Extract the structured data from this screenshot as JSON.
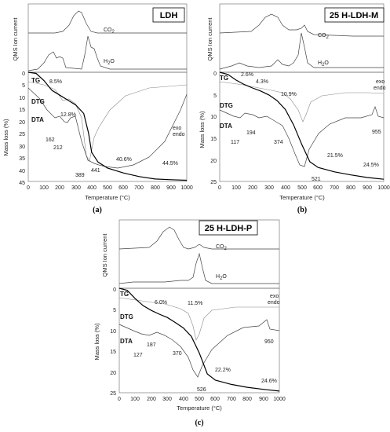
{
  "figure": {
    "panels": [
      {
        "letter": "(a)",
        "title": "LDH",
        "qms_ylabel": "QMS Ion current",
        "mass_ylabel": "Mass loss (%)",
        "xlabel": "Temperature (°C)",
        "xticks": [
          "0",
          "100",
          "200",
          "300",
          "400",
          "500",
          "600",
          "700",
          "800",
          "900",
          "1000"
        ],
        "yticks": [
          "0",
          "5",
          "10",
          "15",
          "20",
          "25",
          "30",
          "35",
          "40",
          "45"
        ],
        "co2_label": "CO",
        "h2o_label": "H",
        "curve_labels": {
          "tg": "TG",
          "dtg": "DTG",
          "dta": "DTA"
        },
        "exo": "exo",
        "endo": "endo",
        "annotations": [
          {
            "text": "8.5%",
            "id": "p1"
          },
          {
            "text": "12.8%",
            "id": "p2"
          },
          {
            "text": "40.6%",
            "id": "p3"
          },
          {
            "text": "44.5%",
            "id": "p4"
          },
          {
            "text": "162",
            "id": "t1"
          },
          {
            "text": "212",
            "id": "t2"
          },
          {
            "text": "389",
            "id": "t3"
          },
          {
            "text": "441",
            "id": "t4"
          }
        ]
      },
      {
        "letter": "(b)",
        "title": "25 H-LDH-M",
        "qms_ylabel": "QMS Ion current",
        "mass_ylabel": "Mass loss (%)",
        "xlabel": "Temperature (°C)",
        "xticks": [
          "0",
          "100",
          "200",
          "300",
          "400",
          "500",
          "600",
          "700",
          "800",
          "900",
          "1000"
        ],
        "yticks": [
          "0",
          "5",
          "10",
          "15",
          "20",
          "25"
        ],
        "co2_label": "CO",
        "h2o_label": "H",
        "curve_labels": {
          "tg": "TG",
          "dtg": "DTG",
          "dta": "DTA"
        },
        "exo": "exo",
        "endo": "endo",
        "annotations": [
          {
            "text": "2.6%",
            "id": "p1"
          },
          {
            "text": "4.3%",
            "id": "p2"
          },
          {
            "text": "10.9%",
            "id": "p3"
          },
          {
            "text": "21.5%",
            "id": "p4"
          },
          {
            "text": "24.5%",
            "id": "p5"
          },
          {
            "text": "117",
            "id": "t1"
          },
          {
            "text": "194",
            "id": "t2"
          },
          {
            "text": "374",
            "id": "t3"
          },
          {
            "text": "521",
            "id": "t4"
          },
          {
            "text": "955",
            "id": "t5"
          }
        ]
      },
      {
        "letter": "(c)",
        "title": "25 H-LDH-P",
        "qms_ylabel": "QMS Ion current",
        "mass_ylabel": "Mass loss (%)",
        "xlabel": "Temperature (°C)",
        "xticks": [
          "0",
          "100",
          "200",
          "300",
          "400",
          "500",
          "600",
          "700",
          "800",
          "900",
          "1000"
        ],
        "yticks": [
          "0",
          "5",
          "10",
          "15",
          "20",
          "25"
        ],
        "co2_label": "CO",
        "h2o_label": "H",
        "curve_labels": {
          "tg": "TG",
          "dtg": "DTG",
          "dta": "DTA"
        },
        "exo": "exo",
        "endo": "endo",
        "annotations": [
          {
            "text": "6.0%",
            "id": "p1"
          },
          {
            "text": "11.5%",
            "id": "p2"
          },
          {
            "text": "22.2%",
            "id": "p3"
          },
          {
            "text": "24.6%",
            "id": "p4"
          },
          {
            "text": "127",
            "id": "t1"
          },
          {
            "text": "187",
            "id": "t2"
          },
          {
            "text": "370",
            "id": "t3"
          },
          {
            "text": "526",
            "id": "t4"
          },
          {
            "text": "950",
            "id": "t5"
          }
        ]
      }
    ]
  },
  "chart_data": [
    {
      "type": "line",
      "title": "LDH",
      "xlabel": "Temperature (°C)",
      "ylabel": "Mass loss (%)",
      "xlim": [
        0,
        1000
      ],
      "ylim": [
        45,
        0
      ],
      "series": [
        {
          "name": "TG",
          "x": [
            0,
            50,
            100,
            150,
            200,
            250,
            300,
            350,
            380,
            400,
            440,
            500,
            600,
            700,
            800,
            900,
            1000
          ],
          "values": [
            0,
            0.5,
            3.5,
            7.5,
            9.5,
            11.5,
            13.5,
            17,
            25,
            33,
            37,
            39.5,
            41.5,
            43,
            44,
            44.3,
            44.5
          ]
        }
      ]
    },
    {
      "type": "line",
      "title": "25 H-LDH-M",
      "xlabel": "Temperature (°C)",
      "ylabel": "Mass loss (%)",
      "xlim": [
        0,
        1000
      ],
      "ylim": [
        25,
        0
      ],
      "series": [
        {
          "name": "TG",
          "x": [
            0,
            50,
            100,
            150,
            200,
            250,
            300,
            350,
            400,
            450,
            500,
            550,
            600,
            700,
            800,
            900,
            1000
          ],
          "values": [
            0,
            0.5,
            1.8,
            2.8,
            3.6,
            4.3,
            5.2,
            6.5,
            8.5,
            12,
            16.5,
            20.5,
            21.8,
            22.8,
            23.5,
            24.1,
            24.5
          ]
        }
      ]
    },
    {
      "type": "line",
      "title": "25 H-LDH-P",
      "xlabel": "Temperature (°C)",
      "ylabel": "Mass loss (%)",
      "xlim": [
        0,
        1000
      ],
      "ylim": [
        25,
        0
      ],
      "series": [
        {
          "name": "TG",
          "x": [
            0,
            50,
            100,
            150,
            200,
            250,
            300,
            350,
            400,
            450,
            500,
            550,
            600,
            700,
            800,
            900,
            1000
          ],
          "values": [
            0,
            0.5,
            2.5,
            4.2,
            5.3,
            6.2,
            7.0,
            8.2,
            9.5,
            11.5,
            15.5,
            20.5,
            22.0,
            23.0,
            23.7,
            24.2,
            24.6
          ]
        }
      ]
    }
  ]
}
